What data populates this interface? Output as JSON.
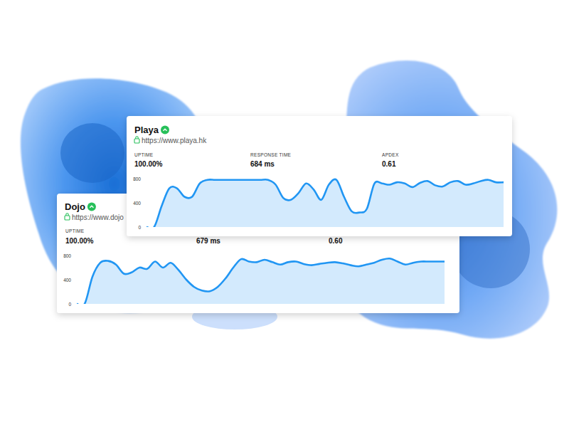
{
  "chart_data": [
    {
      "type": "area",
      "title": "Playa",
      "subtitle": "https://www.playa.hk",
      "annotations": [
        {
          "label": "UPTIME",
          "text": "100.00%"
        },
        {
          "label": "RESPONSE TIME",
          "text": "684 ms"
        },
        {
          "label": "APDEX",
          "text": "0.61"
        }
      ],
      "x": [
        0,
        1,
        2,
        3,
        4,
        5,
        6,
        7,
        8,
        9,
        10,
        11,
        12,
        13,
        14,
        15,
        16,
        17,
        18,
        19,
        20,
        21,
        22,
        23,
        24,
        25,
        26,
        27,
        28,
        29,
        30,
        31,
        32,
        33,
        34,
        35,
        36,
        37,
        38,
        39,
        40,
        41,
        42,
        43,
        44,
        45,
        46,
        47
      ],
      "xlim": [
        0,
        47
      ],
      "ylim": [
        0,
        800
      ],
      "yticks": [
        0,
        400,
        800
      ],
      "tick_labels": "y",
      "grid": false,
      "series": [
        {
          "color": "#2196f3",
          "values": [
            0,
            0,
            350,
            640,
            640,
            500,
            500,
            720,
            780,
            780,
            780,
            780,
            780,
            780,
            780,
            780,
            780,
            700,
            480,
            450,
            560,
            720,
            620,
            450,
            700,
            780,
            500,
            260,
            240,
            300,
            720,
            720,
            700,
            740,
            720,
            660,
            730,
            760,
            690,
            670,
            740,
            760,
            700,
            720,
            760,
            780,
            740,
            740
          ]
        }
      ]
    },
    {
      "type": "area",
      "title": "Dojo",
      "subtitle": "https://www.dojo",
      "annotations": [
        {
          "label": "UPTIME",
          "text": "100.00%"
        },
        {
          "text": "679 ms"
        },
        {
          "text": "0.60"
        }
      ],
      "x": [
        0,
        1,
        2,
        3,
        4,
        5,
        6,
        7,
        8,
        9,
        10,
        11,
        12,
        13,
        14,
        15,
        16,
        17,
        18,
        19,
        20,
        21,
        22,
        23,
        24,
        25,
        26,
        27,
        28,
        29,
        30,
        31,
        32,
        33,
        34,
        35,
        36,
        37,
        38,
        39,
        40,
        41,
        42,
        43,
        44,
        45,
        46,
        47
      ],
      "xlim": [
        0,
        47
      ],
      "ylim": [
        0,
        800
      ],
      "yticks": [
        0,
        400,
        800
      ],
      "tick_labels": "y",
      "grid": false,
      "series": [
        {
          "color": "#2196f3",
          "values": [
            0,
            0,
            450,
            680,
            710,
            650,
            500,
            520,
            600,
            580,
            700,
            600,
            680,
            560,
            400,
            280,
            220,
            210,
            280,
            420,
            600,
            740,
            700,
            690,
            730,
            690,
            650,
            690,
            700,
            660,
            640,
            660,
            680,
            690,
            670,
            640,
            620,
            650,
            680,
            730,
            750,
            700,
            650,
            680,
            700,
            700,
            700,
            700
          ]
        }
      ]
    }
  ]
}
